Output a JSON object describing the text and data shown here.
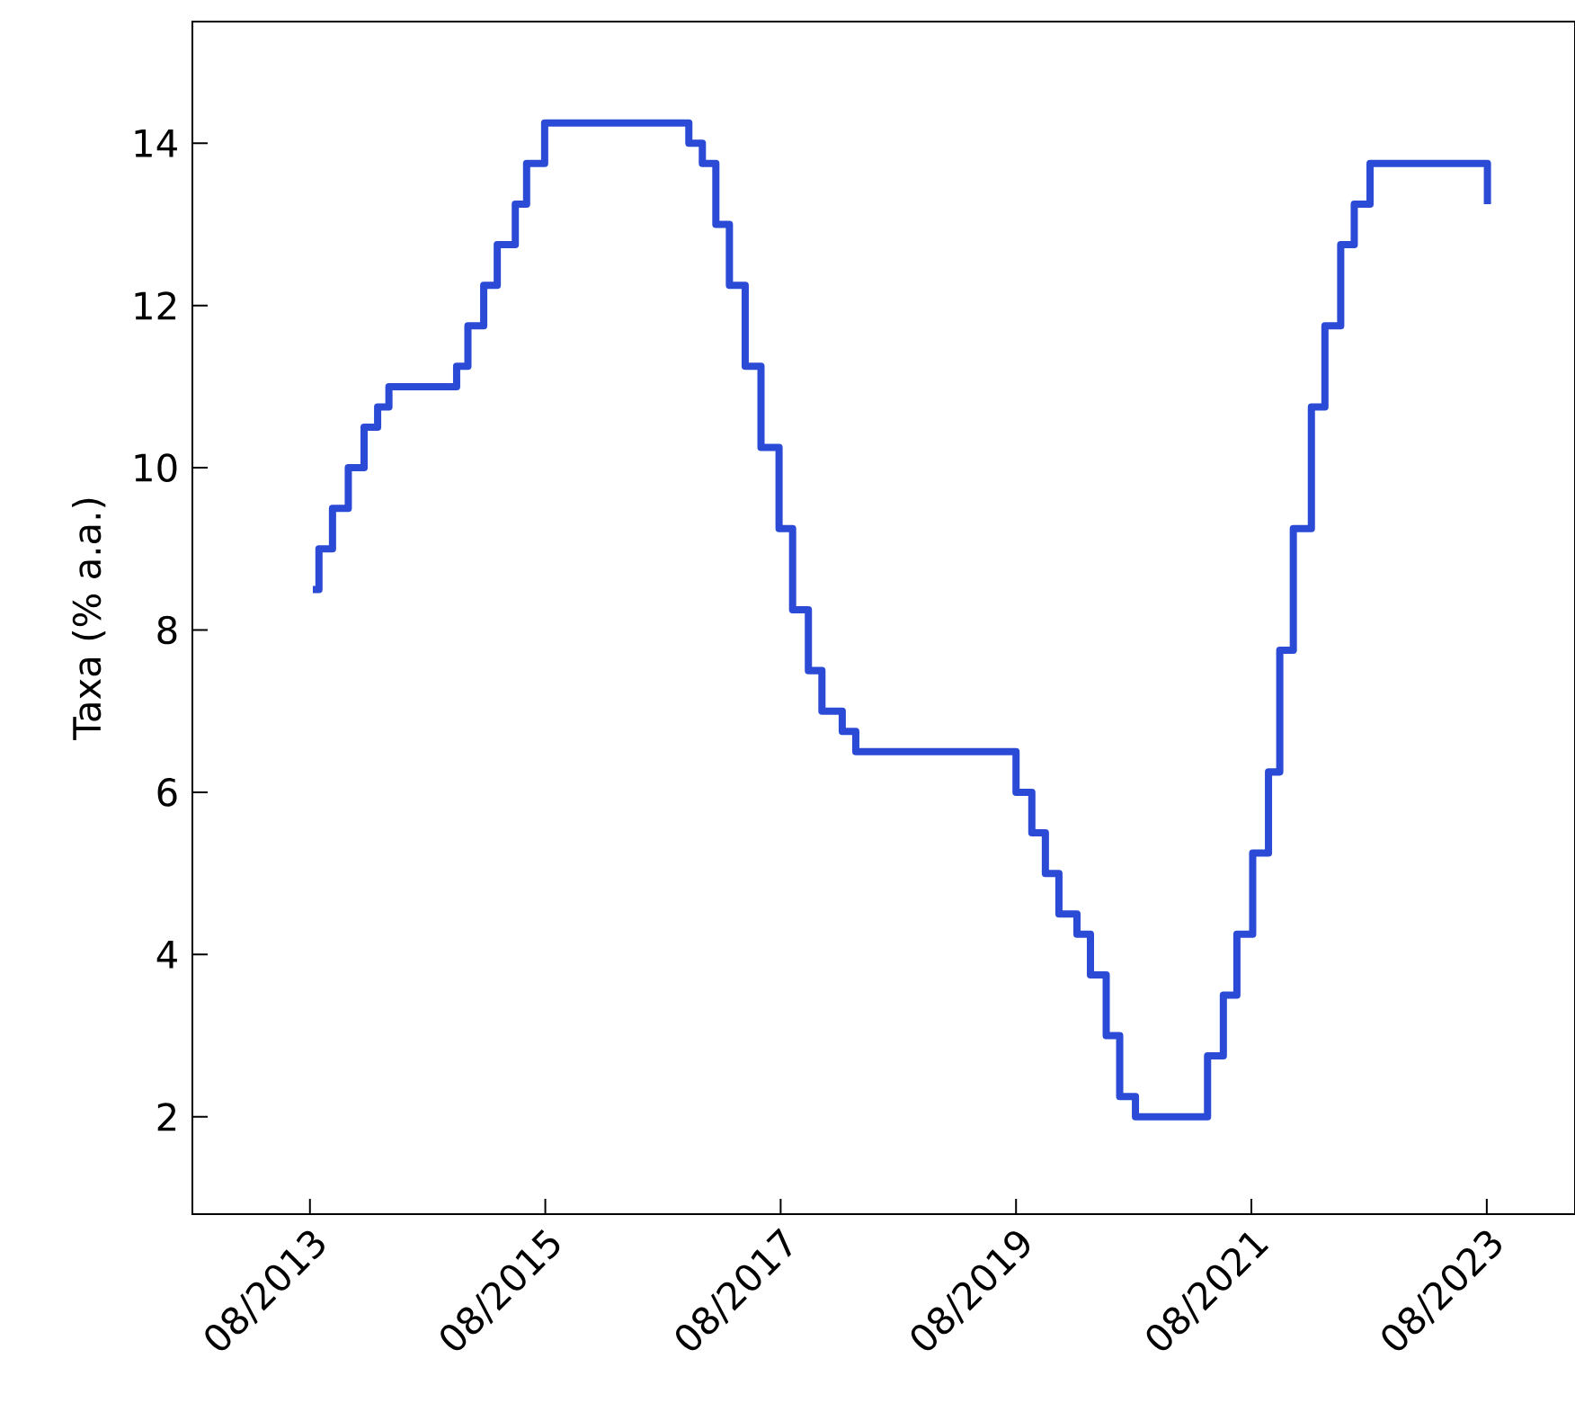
{
  "chart_data": {
    "type": "step",
    "ylabel": "Taxa (% a.a.)",
    "xlim": [
      "2012-08-01",
      "2024-05-01"
    ],
    "ylim": [
      0.8,
      15.5
    ],
    "xticks": [
      {
        "value": "2013-08-01",
        "label": "08/2013"
      },
      {
        "value": "2015-08-01",
        "label": "08/2015"
      },
      {
        "value": "2017-08-01",
        "label": "08/2017"
      },
      {
        "value": "2019-08-01",
        "label": "08/2019"
      },
      {
        "value": "2021-08-01",
        "label": "08/2021"
      },
      {
        "value": "2023-08-01",
        "label": "08/2023"
      }
    ],
    "yticks": [
      2,
      4,
      6,
      8,
      10,
      12,
      14
    ],
    "marker": "none",
    "line_style": "solid",
    "x": [
      "2013-08-10",
      "2013-08-29",
      "2013-10-10",
      "2013-11-28",
      "2014-01-16",
      "2014-02-27",
      "2014-04-03",
      "2014-10-30",
      "2014-12-04",
      "2015-01-22",
      "2015-03-05",
      "2015-04-30",
      "2015-06-04",
      "2015-07-30",
      "2016-10-20",
      "2016-12-01",
      "2017-01-12",
      "2017-02-23",
      "2017-04-13",
      "2017-06-01",
      "2017-07-27",
      "2017-09-07",
      "2017-10-26",
      "2017-12-07",
      "2018-02-08",
      "2018-03-22",
      "2019-08-01",
      "2019-09-19",
      "2019-10-31",
      "2019-12-12",
      "2020-02-06",
      "2020-03-19",
      "2020-05-07",
      "2020-06-18",
      "2020-08-06",
      "2021-03-18",
      "2021-05-06",
      "2021-06-17",
      "2021-08-05",
      "2021-09-23",
      "2021-10-28",
      "2021-12-09",
      "2022-02-03",
      "2022-03-17",
      "2022-05-05",
      "2022-06-16",
      "2022-08-04",
      "2023-08-03"
    ],
    "series": [
      {
        "color": "#2b4bd6",
        "values": [
          8.5,
          9.0,
          9.5,
          10.0,
          10.5,
          10.75,
          11.0,
          11.25,
          11.75,
          12.25,
          12.75,
          13.25,
          13.75,
          14.25,
          14.0,
          13.75,
          13.0,
          12.25,
          11.25,
          10.25,
          9.25,
          8.25,
          7.5,
          7.0,
          6.75,
          6.5,
          6.0,
          5.5,
          5.0,
          4.5,
          4.25,
          3.75,
          3.0,
          2.25,
          2.0,
          2.75,
          3.5,
          4.25,
          5.25,
          6.25,
          7.75,
          9.25,
          10.75,
          11.75,
          12.75,
          13.25,
          13.75,
          13.25
        ]
      }
    ]
  }
}
